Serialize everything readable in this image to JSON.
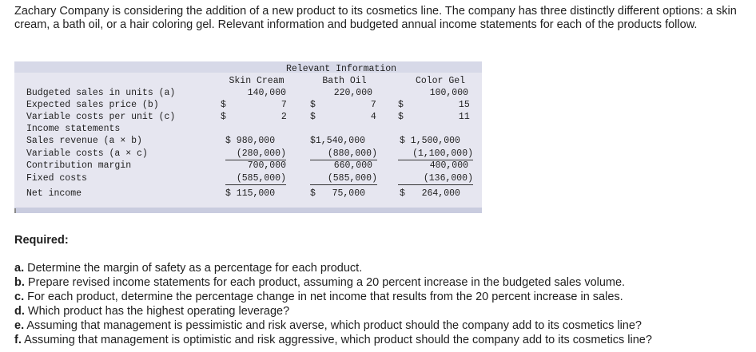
{
  "intro": "Zachary Company is considering the addition of a new product to its cosmetics line. The company has three distinctly different options: a skin cream, a bath oil, or a hair coloring gel. Relevant information and budgeted annual income statements for each of the products follow.",
  "table": {
    "title": "Relevant Information",
    "columns": [
      "Skin Cream",
      "Bath Oil",
      "Color Gel"
    ],
    "rows": [
      {
        "label": "Budgeted sales in units (a)",
        "values": [
          "140,000",
          "220,000",
          "100,000"
        ]
      },
      {
        "label": "Expected sales price (b)",
        "values": [
          "$          7",
          "$          7",
          "$          15"
        ]
      },
      {
        "label": "Variable costs per unit (c)",
        "values": [
          "$          2",
          "$          4",
          "$          11"
        ]
      },
      {
        "label": "Income statements",
        "values": [
          "",
          "",
          ""
        ]
      },
      {
        "label": "Sales revenue (a × b)",
        "values": [
          "$ 980,000",
          "$1,540,000",
          "$ 1,500,000"
        ]
      },
      {
        "label": "Variable costs (a × c)",
        "values": [
          "(280,000)",
          "(880,000)",
          "(1,100,000)"
        ]
      },
      {
        "label": "Contribution margin",
        "values": [
          "700,000",
          "660,000",
          "400,000"
        ]
      },
      {
        "label": "Fixed costs",
        "values": [
          "(585,000)",
          "(585,000)",
          "(136,000)"
        ]
      },
      {
        "label": "Net income",
        "values": [
          "$ 115,000",
          "$   75,000",
          "$   264,000"
        ]
      }
    ]
  },
  "required": {
    "title": "Required:",
    "items": [
      {
        "letter": "a.",
        "text": "Determine the margin of safety as a percentage for each product."
      },
      {
        "letter": "b.",
        "text": "Prepare revised income statements for each product, assuming a 20 percent increase in the budgeted sales volume."
      },
      {
        "letter": "c.",
        "text": "For each product, determine the percentage change in net income that results from the 20 percent  increase in sales."
      },
      {
        "letter": "d.",
        "text": "Which product has the highest operating leverage?"
      },
      {
        "letter": "e.",
        "text": "Assuming that management is pessimistic and risk averse, which product should the company add to its cosmetics line?"
      },
      {
        "letter": "f.",
        "text": "Assuming that management is optimistic and risk aggressive, which product should the company add to its cosmetics line?"
      }
    ]
  }
}
